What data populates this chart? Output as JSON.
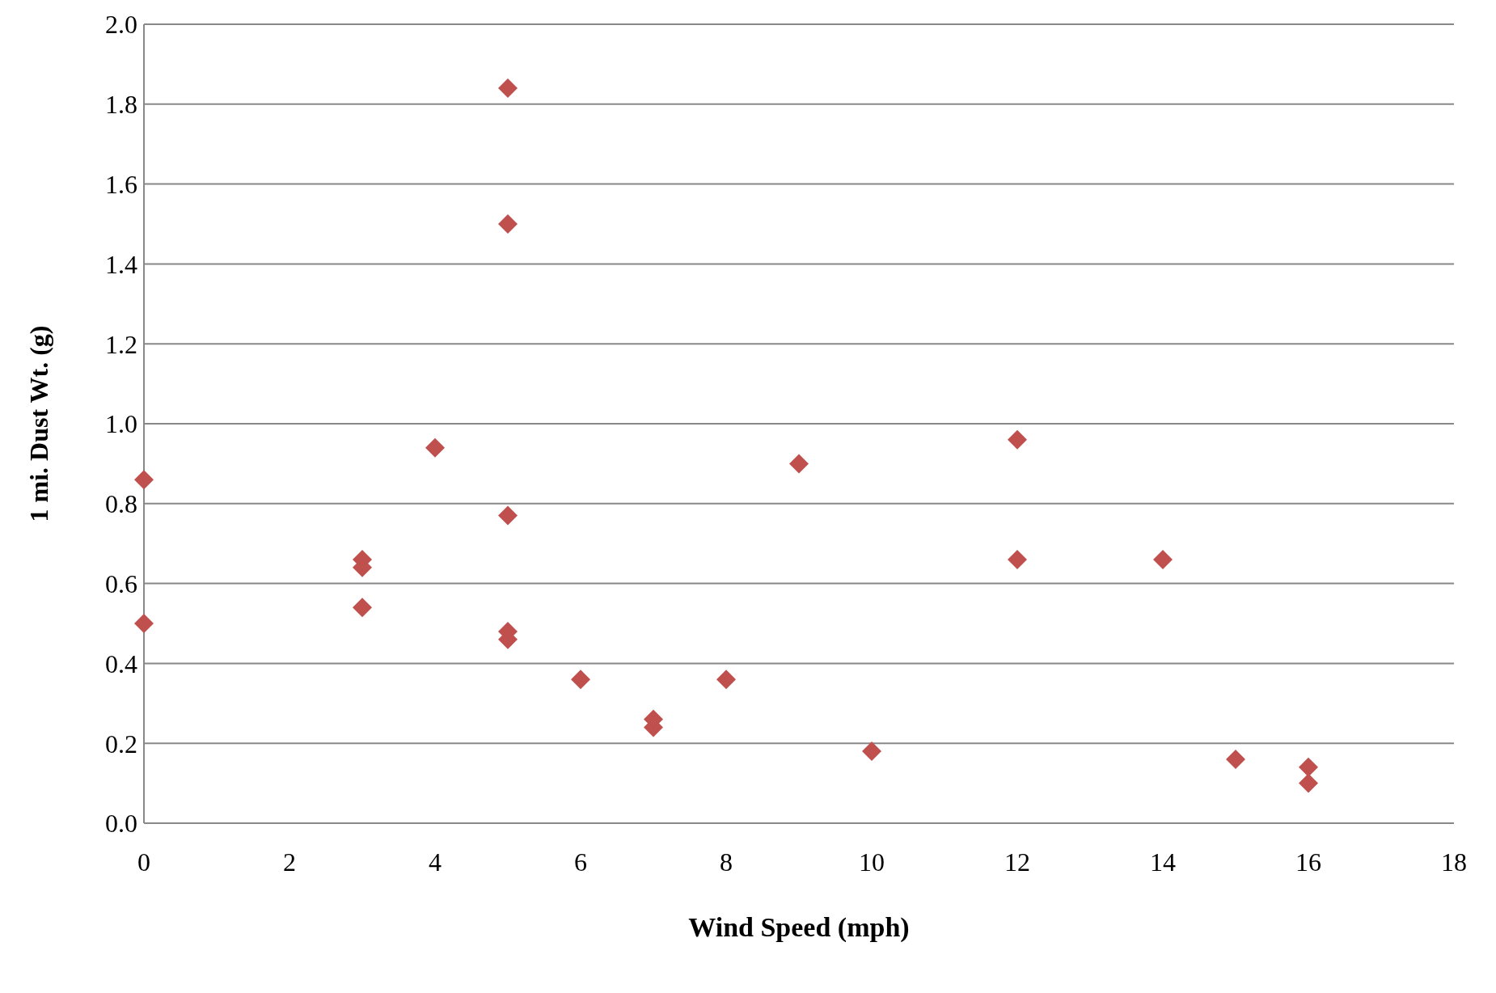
{
  "chart_data": {
    "type": "scatter",
    "xlabel": "Wind Speed  (mph)",
    "ylabel": "1 mi. Dust  Wt.  (g)",
    "x": [
      0,
      0,
      3,
      3,
      3,
      4,
      5,
      5,
      5,
      5,
      5,
      6,
      7,
      7,
      8,
      9,
      10,
      12,
      12,
      14,
      15,
      16,
      16
    ],
    "series": [
      {
        "color": "#c0504d",
        "values": [
          0.86,
          0.5,
          0.66,
          0.64,
          0.54,
          0.94,
          1.84,
          1.5,
          0.77,
          0.48,
          0.46,
          0.36,
          0.26,
          0.24,
          0.36,
          0.9,
          0.18,
          0.96,
          0.66,
          0.66,
          0.16,
          0.14,
          0.1
        ]
      }
    ],
    "xlim": [
      0,
      18
    ],
    "xticks": [
      0,
      2,
      4,
      6,
      8,
      10,
      12,
      14,
      16,
      18
    ],
    "ylim": [
      0,
      2
    ],
    "yticks": [
      {
        "value": 0,
        "label": "0.0"
      },
      {
        "value": 0.2,
        "label": "0.2"
      },
      {
        "value": 0.4,
        "label": "0.4"
      },
      {
        "value": 0.6,
        "label": "0.6"
      },
      {
        "value": 0.8,
        "label": "0.8"
      },
      {
        "value": 1,
        "label": "1.0"
      },
      {
        "value": 1.2,
        "label": "1.2"
      },
      {
        "value": 1.4,
        "label": "1.4"
      },
      {
        "value": 1.6,
        "label": "1.6"
      },
      {
        "value": 1.8,
        "label": "1.8"
      },
      {
        "value": 2,
        "label": "2.0"
      }
    ],
    "grid": "y",
    "marker": "diamond",
    "legend": false
  }
}
